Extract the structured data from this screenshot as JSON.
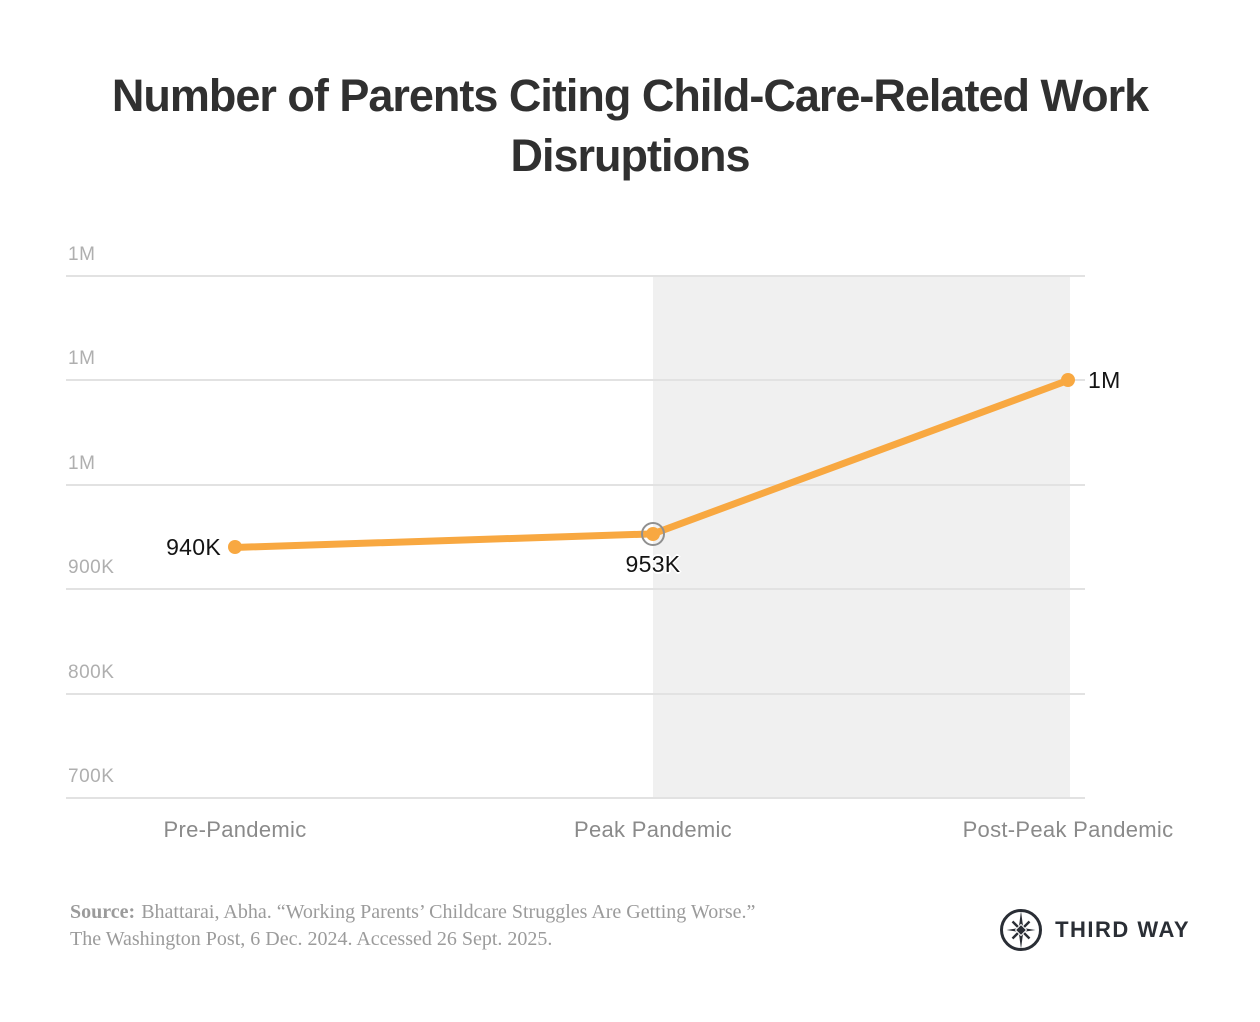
{
  "page": {
    "background": "#FFFFFF"
  },
  "title": {
    "lines": [
      "Number of Parents Citing Child-Care-Related Work",
      "Disruptions"
    ],
    "full": "Number of Parents Citing Child-Care-Related Work Disruptions"
  },
  "chart_data": {
    "type": "line",
    "title": "Number of Parents Citing Child-Care-Related Work Disruptions",
    "categories": [
      "Pre-Pandemic",
      "Peak Pandemic",
      "Post-Peak Pandemic"
    ],
    "values": [
      940000,
      953000,
      1100000
    ],
    "point_labels": [
      "940K",
      "953K",
      "1M"
    ],
    "point_label_positions": [
      "left",
      "below",
      "right"
    ],
    "selected_point": "Peak Pandemic",
    "xlabel": "",
    "ylabel": "",
    "ylim": [
      700000,
      1200000
    ],
    "yticks": [
      1200000,
      1100000,
      1000000,
      900000,
      800000,
      700000
    ],
    "ytick_labels": [
      "1M",
      "1M",
      "1M",
      "900K",
      "800K",
      "700K"
    ],
    "grid": true,
    "legend": false,
    "line_color": "#F8A841",
    "point_color": "#F8A841",
    "grid_color": "#E2E2E2",
    "axis_text_color": "#AFAFAF",
    "shaded_region": {
      "from_category": "Peak Pandemic",
      "to_category": "Post-Peak Pandemic",
      "color": "#F0F0F0"
    }
  },
  "source": {
    "label": "Source:",
    "line1": "Bhattarai, Abha. “Working Parents’ Childcare Struggles Are Getting Worse.”",
    "line2": "The Washington Post, 6 Dec. 2024. Accessed 26 Sept. 2025."
  },
  "logo": {
    "wordmark": "THIRD WAY",
    "icon": "compass-star-icon",
    "color": "#2A2E35"
  }
}
